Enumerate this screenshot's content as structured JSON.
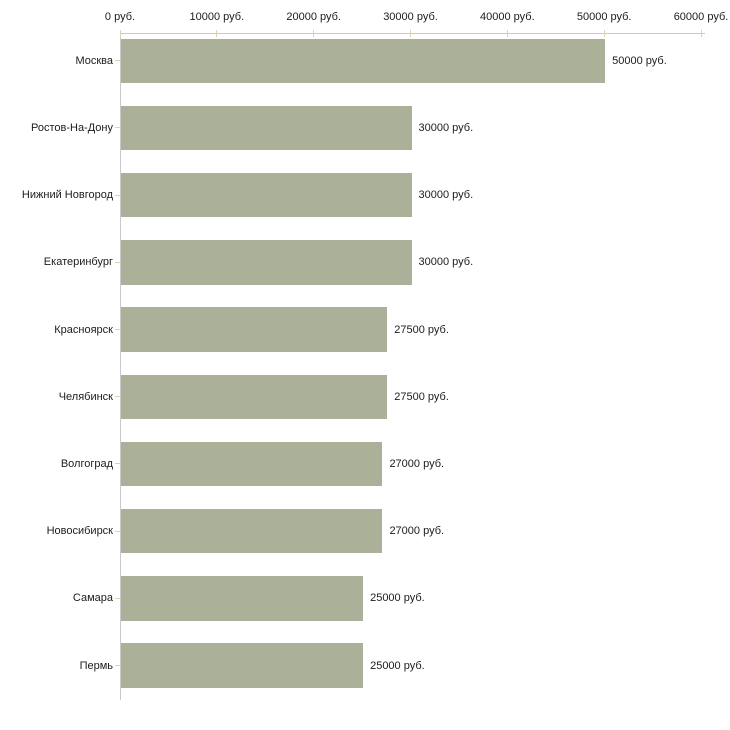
{
  "chart_data": {
    "type": "bar",
    "orientation": "horizontal",
    "title": "",
    "xlabel": "",
    "ylabel": "",
    "unit": "руб.",
    "categories": [
      "Москва",
      "Ростов-На-Дону",
      "Нижний Новгород",
      "Екатеринбург",
      "Красноярск",
      "Челябинск",
      "Волгоград",
      "Новосибирск",
      "Самара",
      "Пермь"
    ],
    "values": [
      50000,
      30000,
      30000,
      30000,
      27500,
      27500,
      27000,
      27000,
      25000,
      25000
    ],
    "value_labels": [
      "50000 руб.",
      "30000 руб.",
      "30000 руб.",
      "30000 руб.",
      "27500 руб.",
      "27500 руб.",
      "27000 руб.",
      "27000 руб.",
      "25000 руб.",
      "25000 руб."
    ],
    "x_ticks": [
      0,
      10000,
      20000,
      30000,
      40000,
      50000,
      60000
    ],
    "x_tick_labels": [
      "0 руб.",
      "10000 руб.",
      "20000 руб.",
      "30000 руб.",
      "40000 руб.",
      "50000 руб.",
      "60000 руб."
    ],
    "xlim": [
      0,
      60000
    ],
    "grid": false,
    "legend": null,
    "axis_position": "top",
    "colors": {
      "bar": "#abb199",
      "axis": "#c9c9c9",
      "tick": "#d8d4ab",
      "text": "#1c1c1c",
      "background": "#ffffff"
    }
  }
}
